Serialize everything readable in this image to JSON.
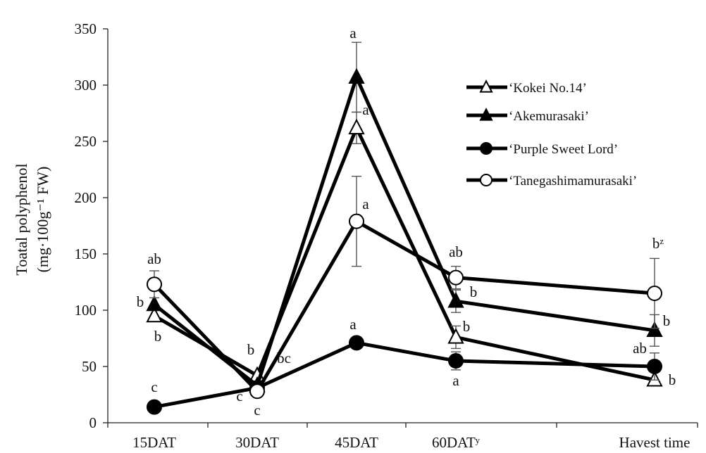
{
  "chart_data": {
    "type": "line",
    "title": "",
    "ylabel_line1": "Toatal polyphenol",
    "ylabel_line2": "(mg·100g⁻¹ FW)",
    "xlabel": "",
    "ylim": [
      0,
      350
    ],
    "yticks": [
      "0",
      "50",
      "100",
      "150",
      "200",
      "250",
      "300",
      "350"
    ],
    "categories": [
      "15DAT",
      "30DAT",
      "45DAT",
      "60DATʸ",
      "Havest time"
    ],
    "grid": false,
    "legend_position": "top-right",
    "series": [
      {
        "name": "‘Kokei No.14’",
        "marker": "open-triangle",
        "values": [
          95,
          42,
          262,
          76,
          38
        ],
        "errors": [
          null,
          null,
          14,
          10,
          null
        ],
        "labels": [
          "b",
          "b",
          "a",
          "b",
          "b"
        ]
      },
      {
        "name": "‘Akemurasaki’",
        "marker": "filled-triangle",
        "values": [
          105,
          33,
          307,
          108,
          82
        ],
        "errors": [
          null,
          null,
          31,
          10,
          14
        ],
        "labels": [
          "b",
          "bc",
          "a",
          "b",
          "b"
        ]
      },
      {
        "name": "‘Purple Sweet Lord’",
        "marker": "filled-circle",
        "values": [
          14,
          31,
          71,
          55,
          50
        ],
        "errors": [
          null,
          null,
          null,
          8,
          12
        ],
        "labels": [
          "c",
          "c",
          "a",
          "a",
          "ab"
        ]
      },
      {
        "name": "‘Tanegashimamurasaki’",
        "marker": "open-circle",
        "values": [
          123,
          28,
          179,
          129,
          115
        ],
        "errors": [
          12,
          null,
          40,
          10,
          31
        ],
        "labels": [
          "ab",
          "c",
          "a",
          "ab",
          "bᶻ"
        ]
      }
    ]
  }
}
